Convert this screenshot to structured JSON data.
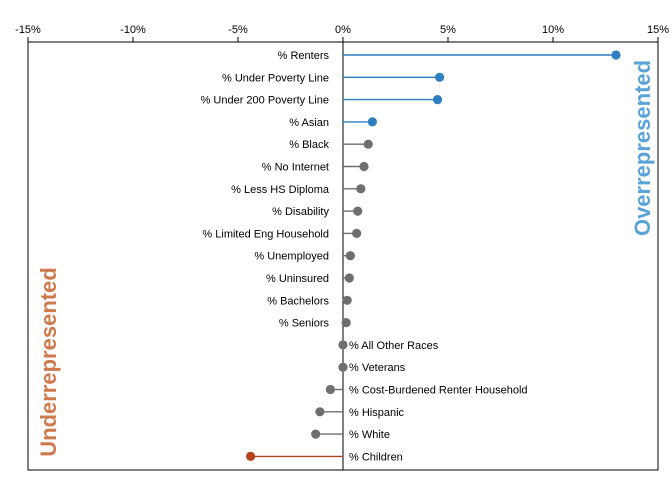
{
  "chart_data": {
    "type": "lollipop",
    "xlim": [
      -15,
      15
    ],
    "x_ticks": [
      -15,
      -10,
      -5,
      0,
      5,
      10,
      15
    ],
    "x_tick_labels": [
      "-15%",
      "-10%",
      "-5%",
      "0%",
      "5%",
      "10%",
      "15%"
    ],
    "grid": false,
    "categories": [
      "% Renters",
      "% Under Poverty Line",
      "% Under 200 Poverty Line",
      "% Asian",
      "% Black",
      "% No Internet",
      "% Less HS Diploma",
      "% Disability",
      "% Limited Eng Household",
      "% Unemployed",
      "% Uninsured",
      "% Bachelors",
      "% Seniors",
      "% All Other Races",
      "% Veterans",
      "% Cost-Burdened Renter Household",
      "% Hispanic",
      "% White",
      "% Children"
    ],
    "values": [
      13.0,
      4.6,
      4.5,
      1.4,
      1.2,
      1.0,
      0.85,
      0.7,
      0.65,
      0.35,
      0.3,
      0.2,
      0.15,
      0.0,
      0.0,
      -0.6,
      -1.1,
      -1.3,
      -4.4
    ],
    "annotations": {
      "overrepresented": "Overrepresented",
      "underrepresented": "Underrepresented"
    },
    "colors": {
      "over": "#2d7fc0",
      "neutral": "#6e6e6e",
      "under": "#b5441a",
      "over_label": "#5aa3d8",
      "under_label": "#cf7a4c"
    },
    "highlight_over": 4,
    "highlight_under": [
      "% Children"
    ]
  }
}
